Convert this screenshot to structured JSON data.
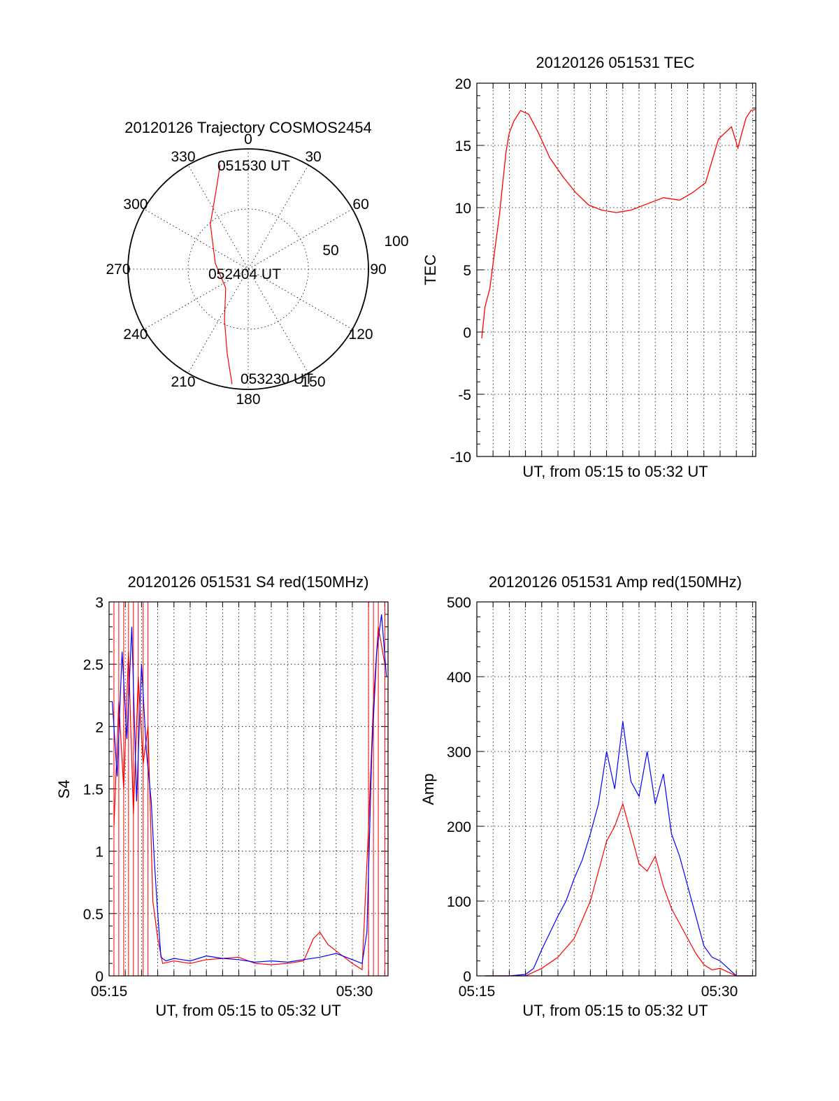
{
  "chart_data": [
    {
      "type": "polar",
      "title": "20120126 Trajectory COSMOS2454",
      "angle_ticks": [
        "0",
        "30",
        "60",
        "90",
        "120",
        "150",
        "180",
        "210",
        "240",
        "270",
        "300",
        "330"
      ],
      "radial_ticks": [
        "50",
        "100"
      ],
      "rlim": [
        0,
        100
      ],
      "grid": true,
      "series": [
        {
          "color": "#ff0000",
          "points": [
            {
              "az": 345,
              "el": 9
            },
            {
              "az": 338,
              "el": 26
            },
            {
              "az": 320,
              "el": 46
            },
            {
              "az": 280,
              "el": 65
            },
            {
              "az": 230,
              "el": 68
            },
            {
              "az": 205,
              "el": 48
            },
            {
              "az": 194,
              "el": 25
            },
            {
              "az": 188,
              "el": 3
            }
          ]
        }
      ],
      "annotations": [
        "051530 UT",
        "052404 UT",
        "053230 UT"
      ]
    },
    {
      "type": "line",
      "title": "20120126 051531 TEC",
      "xlabel": "UT, from 05:15 to 05:32 UT",
      "ylabel": "TEC",
      "xlim": [
        0,
        17.2
      ],
      "ylim": [
        -10,
        20
      ],
      "yticks": [
        "-10",
        "-5",
        "0",
        "5",
        "10",
        "15",
        "20"
      ],
      "grid": true,
      "series": [
        {
          "color": "#ff0000",
          "x": [
            0.3,
            0.5,
            0.8,
            1.1,
            1.4,
            1.6,
            1.8,
            2.0,
            2.3,
            2.7,
            3.2,
            3.8,
            4.5,
            5.3,
            6.1,
            6.9,
            7.7,
            8.6,
            9.5,
            10.5,
            11.5,
            12.5,
            13.3,
            14.1,
            14.9,
            15.7,
            16.1,
            16.3,
            16.6,
            16.9,
            17.2
          ],
          "y": [
            -0.5,
            2.0,
            3.5,
            6.5,
            9.5,
            12.0,
            14.5,
            16.0,
            17.0,
            17.8,
            17.5,
            16.0,
            14.0,
            12.5,
            11.2,
            10.2,
            9.8,
            9.6,
            9.8,
            10.3,
            10.8,
            10.6,
            11.2,
            12.0,
            15.5,
            16.5,
            14.8,
            15.8,
            17.2,
            17.8,
            17.9
          ]
        }
      ]
    },
    {
      "type": "line",
      "title": "20120126 051531 S4 red(150MHz)",
      "xlabel": "UT, from 05:15 to 05:32 UT",
      "ylabel": "S4",
      "xlim": [
        0,
        17.2
      ],
      "ylim": [
        0,
        3
      ],
      "xticks": [
        "05:15",
        "05:30"
      ],
      "yticks": [
        "0",
        "0.5",
        "1",
        "1.5",
        "2",
        "2.5",
        "3"
      ],
      "grid": true,
      "series": [
        {
          "color": "#0000ff",
          "x": [
            0.2,
            0.5,
            0.8,
            1.1,
            1.4,
            1.7,
            2.0,
            2.3,
            2.6,
            2.8,
            3.0,
            3.2,
            3.5,
            4.0,
            5.0,
            6.0,
            7.0,
            8.0,
            9.0,
            10.0,
            11.0,
            12.0,
            13.0,
            14.0,
            15.0,
            15.6,
            15.9,
            16.2,
            16.5,
            16.8,
            17.1
          ],
          "y": [
            2.2,
            1.6,
            2.6,
            1.9,
            2.8,
            1.4,
            2.5,
            1.8,
            1.4,
            0.9,
            0.5,
            0.15,
            0.12,
            0.14,
            0.12,
            0.16,
            0.14,
            0.13,
            0.11,
            0.12,
            0.11,
            0.13,
            0.15,
            0.18,
            0.13,
            0.1,
            0.35,
            1.8,
            2.6,
            2.9,
            2.4
          ]
        },
        {
          "color": "#ff0000",
          "x": [
            0.3,
            0.6,
            0.9,
            1.2,
            1.5,
            1.8,
            2.1,
            2.4,
            2.7,
            3.0,
            3.3,
            4.0,
            5.0,
            6.0,
            7.0,
            8.0,
            9.0,
            10.0,
            11.0,
            12.0,
            12.6,
            13.0,
            13.5,
            14.0,
            14.5,
            15.0,
            15.6,
            16.0,
            16.3,
            16.6,
            17.0
          ],
          "y": [
            1.2,
            2.2,
            1.5,
            2.6,
            1.3,
            2.4,
            1.7,
            2.0,
            0.6,
            0.3,
            0.1,
            0.12,
            0.1,
            0.13,
            0.14,
            0.15,
            0.1,
            0.09,
            0.1,
            0.12,
            0.3,
            0.35,
            0.25,
            0.2,
            0.15,
            0.1,
            0.05,
            1.2,
            2.2,
            2.8,
            2.5
          ]
        }
      ]
    },
    {
      "type": "line",
      "title": "20120126 051531 Amp red(150MHz)",
      "xlabel": "UT, from 05:15 to 05:32 UT",
      "ylabel": "Amp",
      "xlim": [
        0,
        17.2
      ],
      "ylim": [
        0,
        500
      ],
      "xticks": [
        "05:15",
        "05:30"
      ],
      "yticks": [
        "0",
        "100",
        "200",
        "300",
        "400",
        "500"
      ],
      "grid": true,
      "series": [
        {
          "color": "#0000ff",
          "x": [
            0.5,
            2.0,
            3.0,
            3.5,
            4.0,
            5.0,
            5.5,
            6.0,
            6.5,
            7.0,
            7.5,
            8.0,
            8.5,
            9.0,
            9.5,
            10.0,
            10.5,
            11.0,
            11.5,
            12.0,
            12.5,
            13.0,
            13.5,
            14.0,
            14.5,
            15.0,
            15.5,
            16.0,
            17.0
          ],
          "y": [
            0,
            0,
            2,
            10,
            35,
            80,
            100,
            130,
            155,
            190,
            230,
            300,
            250,
            340,
            260,
            240,
            300,
            230,
            270,
            190,
            160,
            120,
            80,
            40,
            25,
            20,
            10,
            0,
            0
          ]
        },
        {
          "color": "#ff0000",
          "x": [
            0.5,
            2.0,
            3.0,
            3.5,
            4.0,
            5.0,
            6.0,
            7.0,
            7.5,
            8.0,
            8.5,
            9.0,
            9.5,
            10.0,
            10.5,
            11.0,
            11.5,
            12.0,
            12.5,
            13.0,
            13.5,
            14.0,
            14.5,
            15.0,
            15.5,
            16.0,
            17.0
          ],
          "y": [
            0,
            0,
            0,
            5,
            10,
            25,
            50,
            100,
            140,
            180,
            200,
            230,
            190,
            150,
            140,
            160,
            120,
            90,
            70,
            50,
            30,
            15,
            8,
            10,
            5,
            0,
            0
          ]
        }
      ]
    }
  ]
}
